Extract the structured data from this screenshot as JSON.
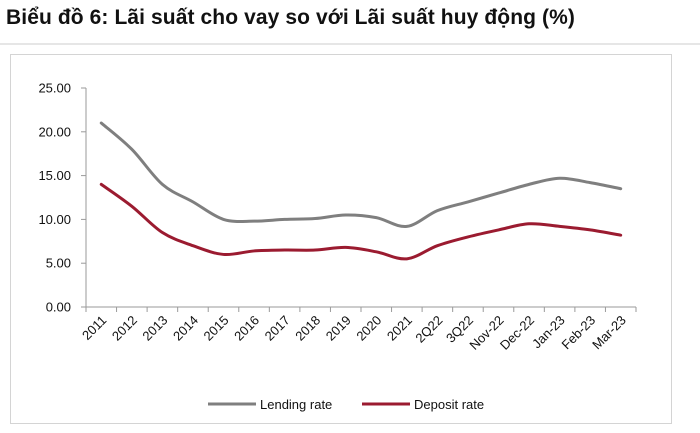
{
  "title": "Biểu đồ 6: Lãi suất cho vay so với Lãi suất huy động (%)",
  "chart_data": {
    "type": "line",
    "title": "Biểu đồ 6: Lãi suất cho vay so với Lãi suất huy động (%)",
    "xlabel": "",
    "ylabel": "",
    "categories": [
      "2011",
      "2012",
      "2013",
      "2014",
      "2015",
      "2016",
      "2017",
      "2018",
      "2019",
      "2020",
      "2021",
      "2Q22",
      "3Q22",
      "Nov-22",
      "Dec-22",
      "Jan-23",
      "Feb-23",
      "Mar-23"
    ],
    "ylim": [
      0,
      25
    ],
    "yticks": [
      "0.00",
      "5.00",
      "10.00",
      "15.00",
      "20.00",
      "25.00"
    ],
    "grid": false,
    "legend_position": "bottom",
    "series": [
      {
        "name": "Lending rate",
        "color": "#7f7f7f",
        "values": [
          21.0,
          18.0,
          14.0,
          12.0,
          10.0,
          9.8,
          10.0,
          10.1,
          10.5,
          10.2,
          9.2,
          11.0,
          12.0,
          13.0,
          14.0,
          14.7,
          14.2,
          13.5
        ]
      },
      {
        "name": "Deposit rate",
        "color": "#9b1b30",
        "values": [
          14.0,
          11.5,
          8.5,
          7.0,
          6.0,
          6.4,
          6.5,
          6.5,
          6.8,
          6.3,
          5.5,
          7.0,
          8.0,
          8.8,
          9.5,
          9.2,
          8.8,
          8.2
        ]
      }
    ]
  }
}
